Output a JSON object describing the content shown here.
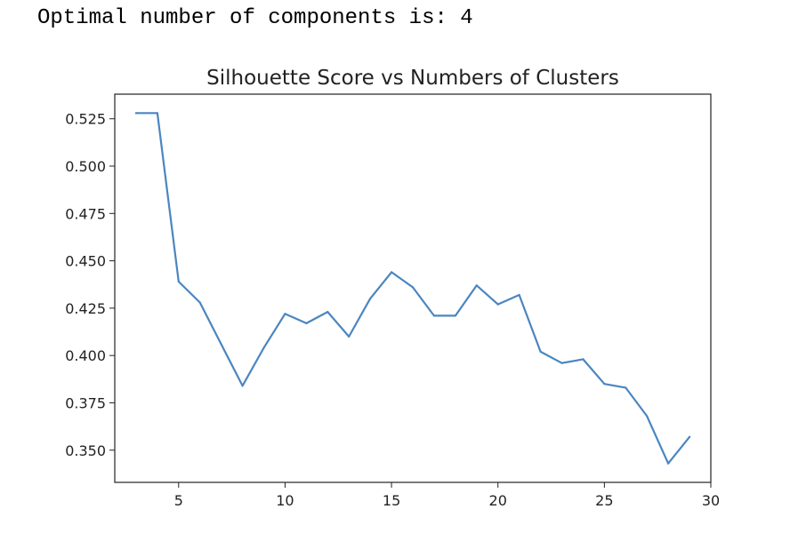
{
  "output": {
    "text": "Optimal number of components is: 4"
  },
  "chart_data": {
    "type": "line",
    "title": "Silhouette Score vs Numbers of Clusters",
    "xlabel": "",
    "ylabel": "",
    "xlim": [
      2.0,
      30.0
    ],
    "ylim": [
      0.333,
      0.538
    ],
    "xticks": [
      5,
      10,
      15,
      20,
      25,
      30
    ],
    "yticks": [
      0.35,
      0.375,
      0.4,
      0.425,
      0.45,
      0.475,
      0.5,
      0.525
    ],
    "xtick_labels": [
      "5",
      "10",
      "15",
      "20",
      "25",
      "30"
    ],
    "ytick_labels": [
      "0.350",
      "0.375",
      "0.400",
      "0.425",
      "0.450",
      "0.475",
      "0.500",
      "0.525"
    ],
    "grid": false,
    "color": "#4a86c0",
    "x": [
      3,
      4,
      5,
      6,
      7,
      8,
      9,
      10,
      11,
      12,
      13,
      14,
      15,
      16,
      17,
      18,
      19,
      20,
      21,
      22,
      23,
      24,
      25,
      26,
      27,
      28,
      29
    ],
    "values": [
      0.528,
      0.528,
      0.439,
      0.428,
      0.406,
      0.384,
      0.404,
      0.422,
      0.417,
      0.423,
      0.41,
      0.43,
      0.444,
      0.436,
      0.421,
      0.421,
      0.437,
      0.427,
      0.432,
      0.402,
      0.396,
      0.398,
      0.385,
      0.383,
      0.368,
      0.343,
      0.357
    ]
  }
}
